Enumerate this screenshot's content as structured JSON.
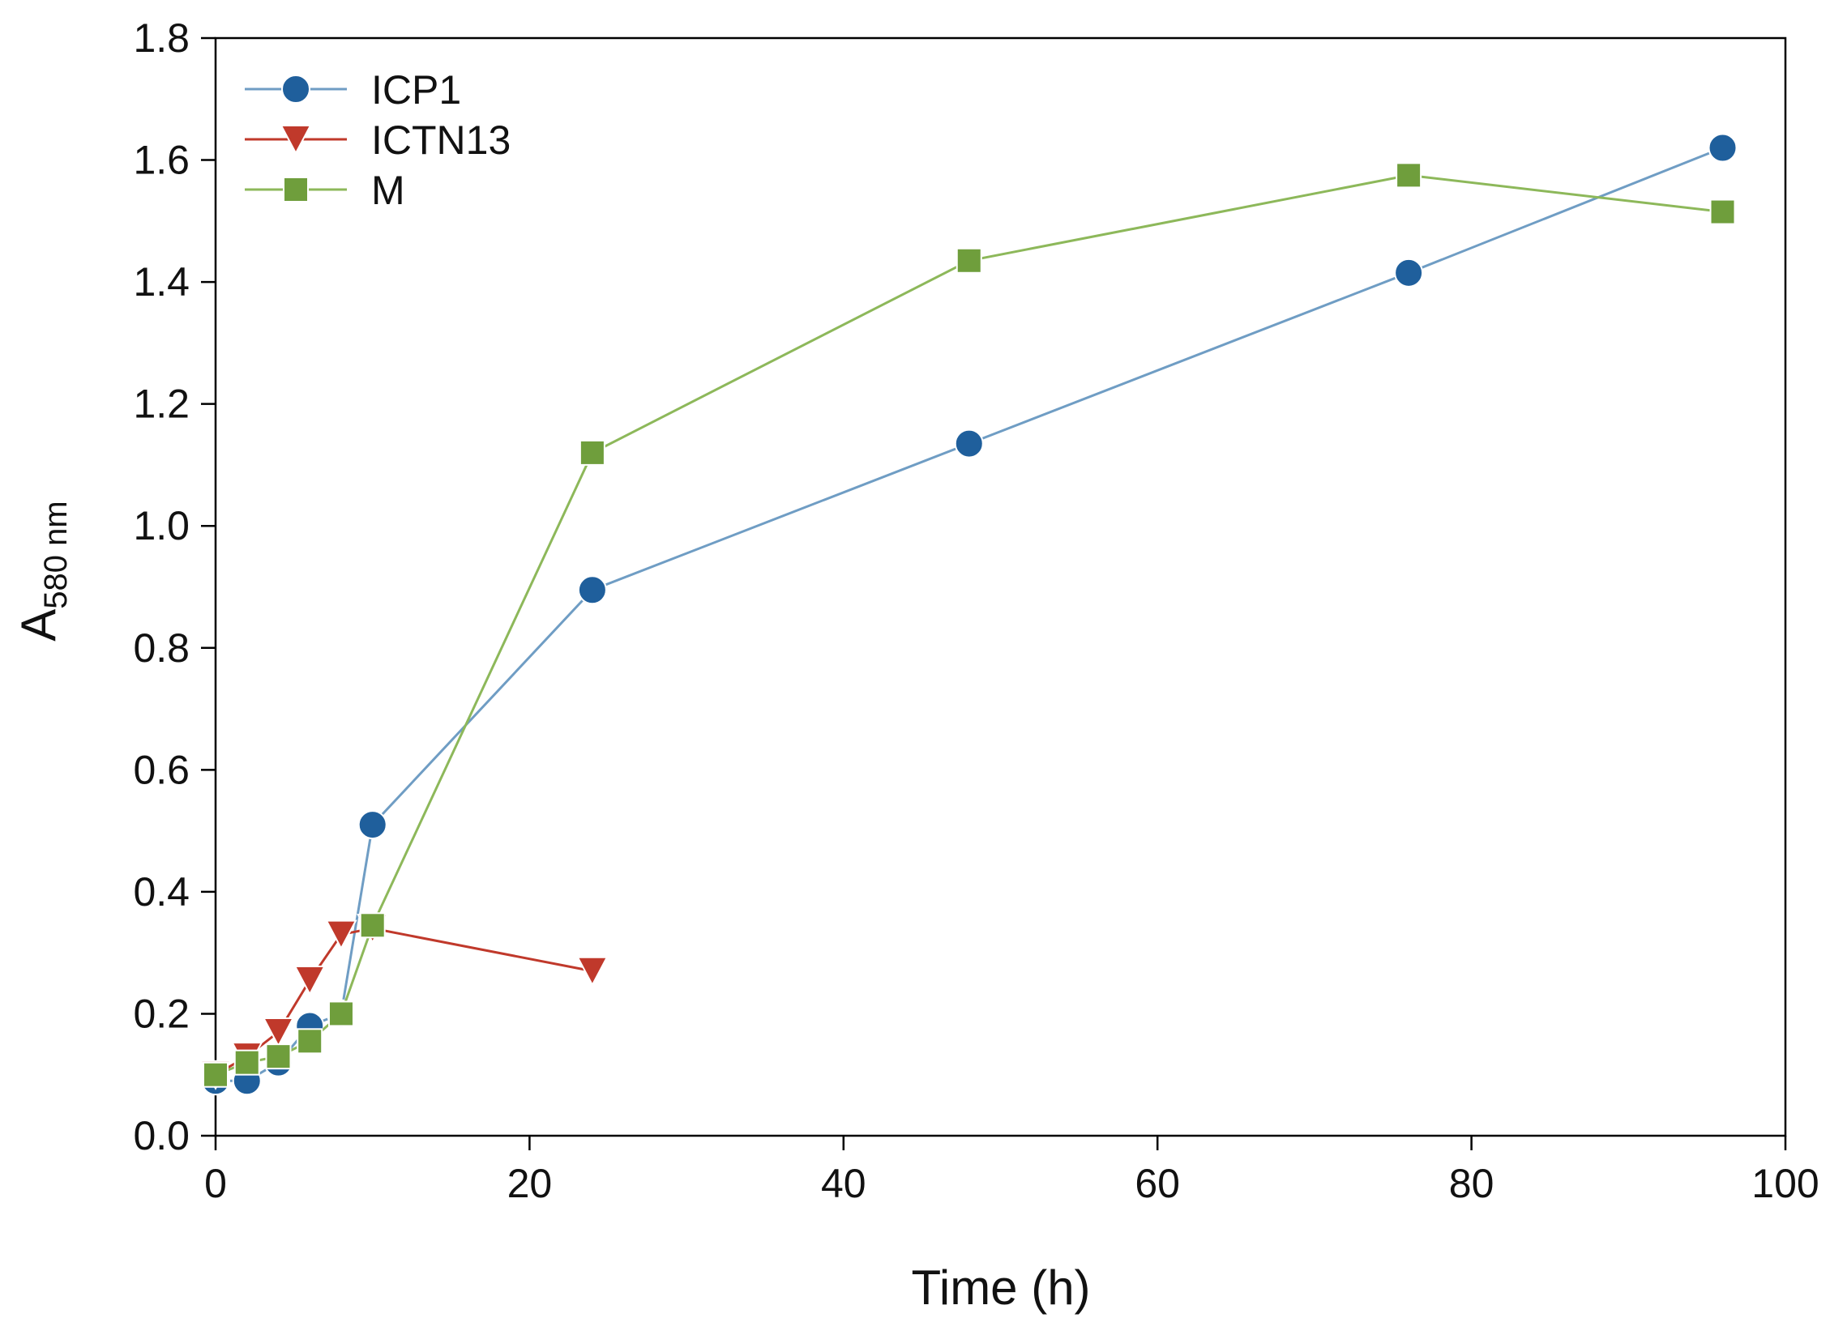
{
  "chart_data": {
    "type": "line",
    "title": "",
    "xlabel": "Time (h)",
    "ylabel": "A",
    "ylabel_subscript": "580 nm",
    "xlim": [
      0,
      100
    ],
    "ylim": [
      0,
      1.8
    ],
    "xticks": [
      0,
      20,
      40,
      60,
      80,
      100
    ],
    "xtick_labels": [
      "0",
      "20",
      "40",
      "60",
      "80",
      "100"
    ],
    "yticks": [
      0,
      0.2,
      0.4,
      0.6,
      0.8,
      1.0,
      1.2,
      1.4,
      1.6,
      1.8
    ],
    "ytick_labels": [
      "0.0",
      "0.2",
      "0.4",
      "0.6",
      "0.8",
      "1.0",
      "1.2",
      "1.4",
      "1.6",
      "1.8"
    ],
    "grid": false,
    "legend_position": "top-left",
    "series": [
      {
        "name": "ICP1",
        "color": "#1f5f9c",
        "line_color": "#6f9dc4",
        "marker": "circle",
        "x": [
          0,
          2,
          4,
          6,
          8,
          10,
          24,
          48,
          76,
          96
        ],
        "y": [
          0.09,
          0.09,
          0.12,
          0.18,
          0.2,
          0.51,
          0.895,
          1.135,
          1.415,
          1.62
        ]
      },
      {
        "name": "ICTN13",
        "color": "#c0392b",
        "line_color": "#c0392b",
        "marker": "triangle-down",
        "x": [
          0,
          2,
          4,
          6,
          8,
          10,
          24
        ],
        "y": [
          0.1,
          0.13,
          0.17,
          0.255,
          0.33,
          0.34,
          0.27
        ]
      },
      {
        "name": "M",
        "color": "#6f9e3c",
        "line_color": "#8db85a",
        "marker": "square",
        "x": [
          0,
          2,
          4,
          6,
          8,
          10,
          24,
          48,
          76,
          96
        ],
        "y": [
          0.1,
          0.12,
          0.13,
          0.155,
          0.2,
          0.345,
          1.12,
          1.435,
          1.575,
          1.515
        ]
      }
    ]
  }
}
